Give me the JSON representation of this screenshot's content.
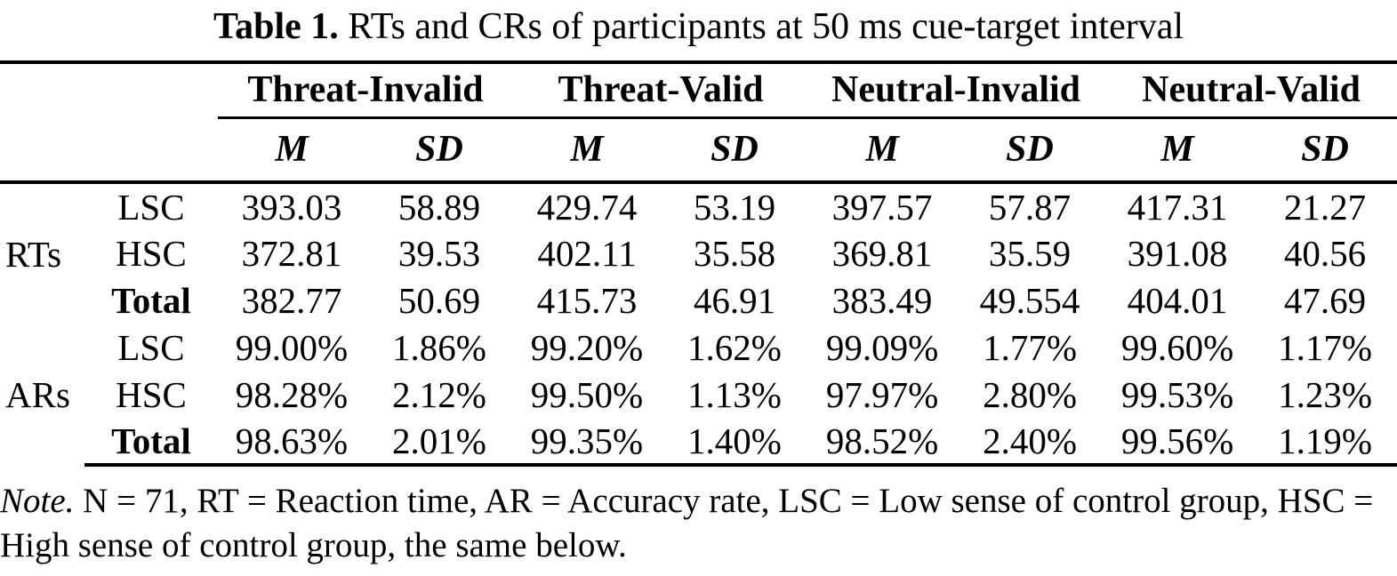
{
  "title": {
    "label": "Table 1.",
    "text": "RTs and CRs of participants at 50 ms cue-target interval"
  },
  "table": {
    "col_groups": [
      "Threat-Invalid",
      "Threat-Valid",
      "Neutral-Invalid",
      "Neutral-Valid"
    ],
    "sub_headers": [
      "M",
      "SD"
    ],
    "row_groups": [
      {
        "label": "RTs",
        "rows": [
          {
            "label": "LSC",
            "values": [
              "393.03",
              "58.89",
              "429.74",
              "53.19",
              "397.57",
              "57.87",
              "417.31",
              "21.27"
            ]
          },
          {
            "label": "HSC",
            "values": [
              "372.81",
              "39.53",
              "402.11",
              "35.58",
              "369.81",
              "35.59",
              "391.08",
              "40.56"
            ]
          },
          {
            "label": "Total",
            "values": [
              "382.77",
              "50.69",
              "415.73",
              "46.91",
              "383.49",
              "49.554",
              "404.01",
              "47.69"
            ]
          }
        ]
      },
      {
        "label": "ARs",
        "rows": [
          {
            "label": "LSC",
            "values": [
              "99.00%",
              "1.86%",
              "99.20%",
              "1.62%",
              "99.09%",
              "1.77%",
              "99.60%",
              "1.17%"
            ]
          },
          {
            "label": "HSC",
            "values": [
              "98.28%",
              "2.12%",
              "99.50%",
              "1.13%",
              "97.97%",
              "2.80%",
              "99.53%",
              "1.23%"
            ]
          },
          {
            "label": "Total",
            "values": [
              "98.63%",
              "2.01%",
              "99.35%",
              "1.40%",
              "98.52%",
              "2.40%",
              "99.56%",
              "1.19%"
            ]
          }
        ]
      }
    ]
  },
  "note": {
    "label": "Note.",
    "text": "N = 71, RT = Reaction time, AR = Accuracy rate, LSC = Low sense of control group, HSC = High sense of control group, the same below."
  }
}
